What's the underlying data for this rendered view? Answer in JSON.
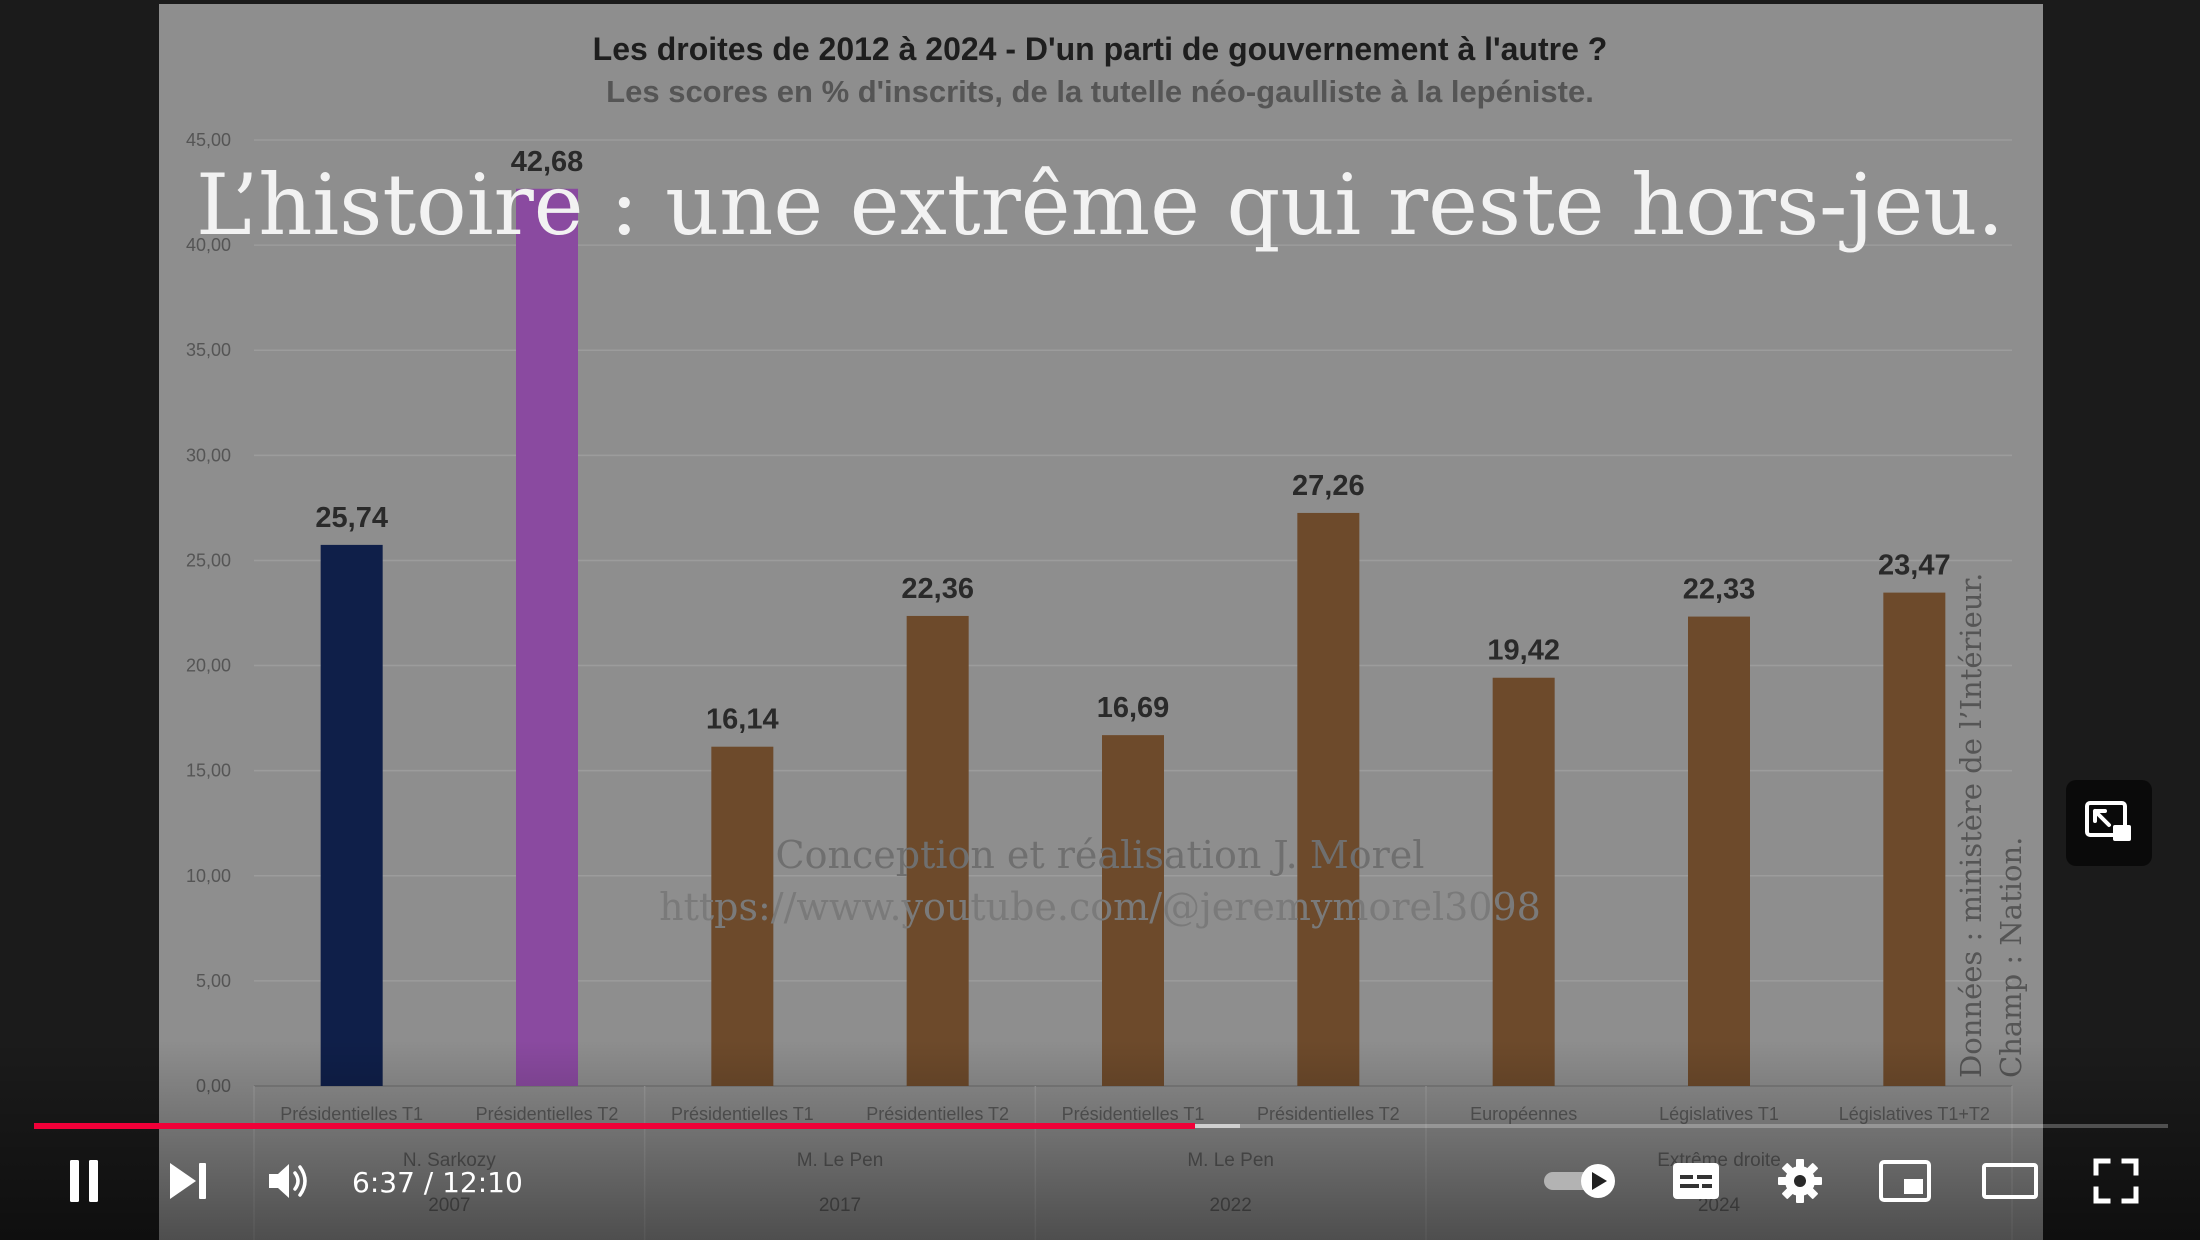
{
  "chart_data": {
    "type": "bar",
    "title": "Les droites de 2012 à 2024 - D'un parti de gouvernement à l'autre ?",
    "subtitle": "Les scores en % d'inscrits, de la tutelle néo-gaulliste à la lepéniste.",
    "ylim": [
      0,
      45
    ],
    "yticks": [
      "0,00",
      "5,00",
      "10,00",
      "15,00",
      "20,00",
      "25,00",
      "30,00",
      "35,00",
      "40,00",
      "45,00"
    ],
    "grid": true,
    "categories": [
      "Présidentielles T1",
      "Présidentielles T2",
      "Présidentielles T1",
      "Présidentielles T2",
      "Présidentielles T1",
      "Présidentielles T2",
      "Européennes",
      "Législatives T1",
      "Législatives T1+T2"
    ],
    "values": [
      25.74,
      42.68,
      16.14,
      22.36,
      16.69,
      27.26,
      19.42,
      22.33,
      23.47
    ],
    "value_labels": [
      "25,74",
      "42,68",
      "16,14",
      "22,36",
      "16,69",
      "27,26",
      "19,42",
      "22,33",
      "23,47"
    ],
    "bar_colors": [
      "#0f1f49",
      "#8a4aa0",
      "#6d4a2b",
      "#6d4a2b",
      "#6d4a2b",
      "#6d4a2b",
      "#6d4a2b",
      "#6d4a2b",
      "#6d4a2b"
    ],
    "groups": [
      {
        "label": "N. Sarkozy",
        "year": "2007",
        "start": 0,
        "end": 2
      },
      {
        "label": "M. Le Pen",
        "year": "2017",
        "start": 2,
        "end": 4
      },
      {
        "label": "M. Le Pen",
        "year": "2022",
        "start": 4,
        "end": 6
      },
      {
        "label": "Extrême droite",
        "year": "2024",
        "start": 6,
        "end": 9
      }
    ]
  },
  "overlay": {
    "caption": "L’histoire : une extrême qui reste hors-jeu.",
    "watermark_line1": "Conception et réalisation J. Morel",
    "watermark_line2": "https://www.youtube.com/@jeremymorel3098",
    "source_line1": "Données : ministère de l’Intérieur.",
    "source_line2": "Champ : Nation."
  },
  "player": {
    "current_time": "6:37",
    "duration": "12:10",
    "time_display": "6:37 / 12:10",
    "played_fraction": 0.544,
    "buffered_fraction": 0.565,
    "accent_color": "#f00038",
    "autoplay": "on",
    "icons": {
      "play_pause": "pause-icon",
      "next": "next-icon",
      "volume": "volume-icon",
      "autoplay": "autoplay-toggle-icon",
      "subtitles": "subtitles-icon",
      "settings": "gear-icon",
      "miniplayer": "miniplayer-icon",
      "theater": "theater-mode-icon",
      "fullscreen": "fullscreen-icon",
      "miniplayer_popup": "expand-miniplayer-icon"
    }
  }
}
